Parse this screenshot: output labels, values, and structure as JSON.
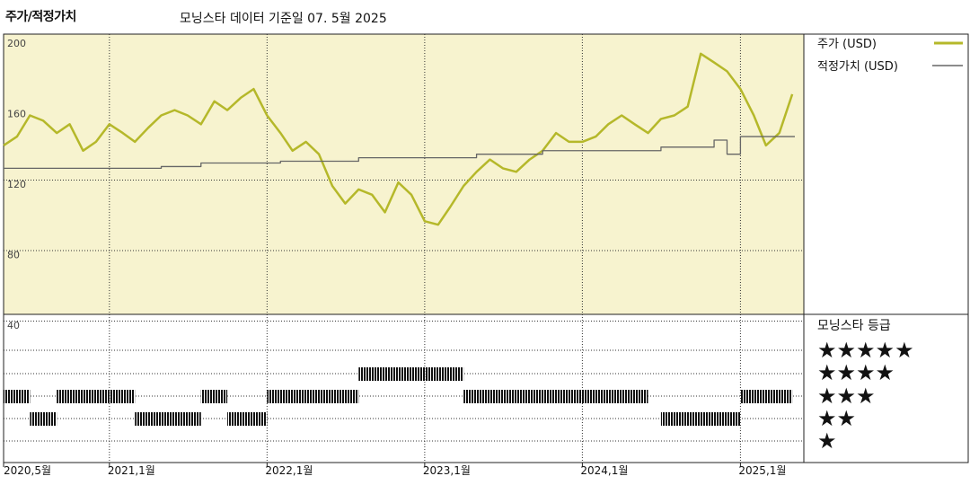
{
  "header": {
    "title": "주가/적정가치",
    "subtitle": "모닝스타 데이터 기준일 07. 5월 2025"
  },
  "legend": {
    "price": "주가 (USD)",
    "fair_value": "적정가치 (USD)",
    "price_color": "#b5b82a",
    "fair_color": "#666666"
  },
  "rating": {
    "title": "모닝스타 등급",
    "stars": [
      "★★★★★",
      "★★★★",
      "★★★",
      "★★",
      "★"
    ]
  },
  "chart_data": {
    "type": "line",
    "title": "주가/적정가치",
    "subtitle": "모닝스타 데이터 기준일 07. 5월 2025",
    "y_ticks": [
      "200",
      "160",
      "120",
      "80",
      "40"
    ],
    "y_tick_values": [
      200,
      160,
      120,
      80,
      40
    ],
    "ylim": [
      40,
      200
    ],
    "x_tick_labels": [
      "2020,5월",
      "2021,1월",
      "2022,1월",
      "2023,1월",
      "2024,1월",
      "2025,1월"
    ],
    "x_range": [
      "2020-05",
      "2025-05"
    ],
    "grid": true,
    "legend_position": "right",
    "background_color": "#f7f3cf",
    "series": [
      {
        "name": "주가 (USD)",
        "color": "#b5b82a",
        "x": [
          "2020-05",
          "2020-06",
          "2020-07",
          "2020-08",
          "2020-09",
          "2020-10",
          "2020-11",
          "2020-12",
          "2021-01",
          "2021-02",
          "2021-03",
          "2021-04",
          "2021-05",
          "2021-06",
          "2021-07",
          "2021-08",
          "2021-09",
          "2021-10",
          "2021-11",
          "2021-12",
          "2022-01",
          "2022-02",
          "2022-03",
          "2022-04",
          "2022-05",
          "2022-06",
          "2022-07",
          "2022-08",
          "2022-09",
          "2022-10",
          "2022-11",
          "2022-12",
          "2023-01",
          "2023-02",
          "2023-03",
          "2023-04",
          "2023-05",
          "2023-06",
          "2023-07",
          "2023-08",
          "2023-09",
          "2023-10",
          "2023-11",
          "2023-12",
          "2024-01",
          "2024-02",
          "2024-03",
          "2024-04",
          "2024-05",
          "2024-06",
          "2024-07",
          "2024-08",
          "2024-09",
          "2024-10",
          "2024-11",
          "2024-12",
          "2025-01",
          "2025-02",
          "2025-03",
          "2025-04",
          "2025-05"
        ],
        "values": [
          143,
          148,
          160,
          157,
          150,
          155,
          140,
          145,
          155,
          150,
          145,
          153,
          160,
          163,
          160,
          155,
          168,
          163,
          170,
          175,
          160,
          150,
          140,
          145,
          138,
          120,
          110,
          118,
          115,
          105,
          122,
          115,
          100,
          98,
          108,
          120,
          128,
          135,
          130,
          128,
          135,
          140,
          150,
          145,
          145,
          148,
          155,
          160,
          155,
          150,
          158,
          160,
          165,
          195,
          190,
          185,
          175,
          160,
          143,
          150,
          172
        ]
      },
      {
        "name": "적정가치 (USD)",
        "color": "#666666",
        "x": [
          "2020-05",
          "2021-01",
          "2021-05",
          "2021-08",
          "2022-02",
          "2022-08",
          "2023-05",
          "2023-10",
          "2024-03",
          "2024-07",
          "2024-11",
          "2024-12",
          "2025-01",
          "2025-05"
        ],
        "values": [
          130,
          130,
          131,
          133,
          134,
          136,
          138,
          140,
          140,
          142,
          146,
          138,
          148,
          148
        ]
      }
    ],
    "rating_history": [
      {
        "start": "2020-05",
        "end": "2020-07",
        "stars": 3
      },
      {
        "start": "2020-07",
        "end": "2020-09",
        "stars": 2
      },
      {
        "start": "2020-09",
        "end": "2020-10",
        "stars": 3
      },
      {
        "start": "2020-10",
        "end": "2021-01",
        "stars": 3
      },
      {
        "start": "2021-01",
        "end": "2021-03",
        "stars": 3
      },
      {
        "start": "2021-03",
        "end": "2021-08",
        "stars": 2
      },
      {
        "start": "2021-08",
        "end": "2021-10",
        "stars": 3
      },
      {
        "start": "2021-10",
        "end": "2022-01",
        "stars": 2
      },
      {
        "start": "2022-01",
        "end": "2022-08",
        "stars": 3
      },
      {
        "start": "2022-08",
        "end": "2023-04",
        "stars": 4
      },
      {
        "start": "2023-04",
        "end": "2024-04",
        "stars": 3
      },
      {
        "start": "2024-04",
        "end": "2024-06",
        "stars": 3
      },
      {
        "start": "2024-07",
        "end": "2025-01",
        "stars": 2
      },
      {
        "start": "2025-01",
        "end": "2025-05",
        "stars": 3
      }
    ]
  }
}
